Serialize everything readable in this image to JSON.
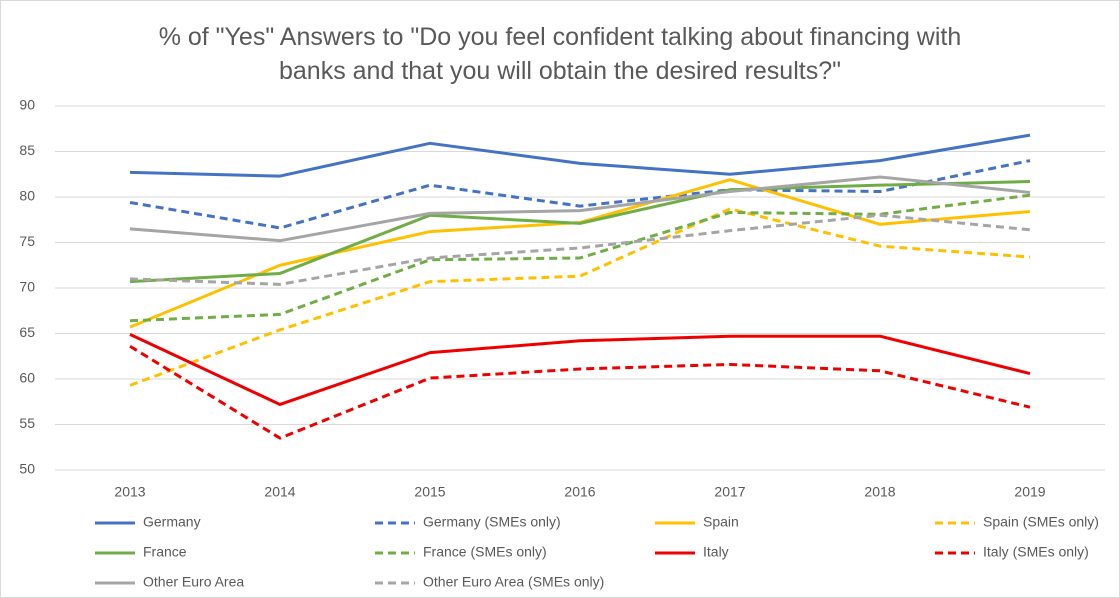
{
  "chart_data": {
    "type": "line",
    "title": "% of \"Yes\" Answers to \"Do you feel confident talking about financing with banks and that you will obtain the desired results?\"",
    "categories": [
      "2013",
      "2014",
      "2015",
      "2016",
      "2017",
      "2018",
      "2019"
    ],
    "series": [
      {
        "name": "Germany",
        "color": "#4472c4",
        "dashed": false,
        "values": [
          82.7,
          82.3,
          85.9,
          83.7,
          82.5,
          84.0,
          86.8
        ]
      },
      {
        "name": "Germany (SMEs only)",
        "color": "#4472c4",
        "dashed": true,
        "values": [
          79.4,
          76.6,
          81.3,
          79.0,
          80.8,
          80.6,
          84.0
        ]
      },
      {
        "name": "Spain",
        "color": "#ffc000",
        "dashed": false,
        "values": [
          65.7,
          72.5,
          76.2,
          77.2,
          81.9,
          77.0,
          78.4
        ]
      },
      {
        "name": "Spain (SMEs only)",
        "color": "#ffc000",
        "dashed": true,
        "values": [
          59.3,
          65.4,
          70.7,
          71.3,
          78.7,
          74.6,
          73.4
        ]
      },
      {
        "name": "France",
        "color": "#70ad47",
        "dashed": false,
        "values": [
          70.7,
          71.6,
          78.0,
          77.1,
          80.8,
          81.3,
          81.7
        ]
      },
      {
        "name": "France (SMEs only)",
        "color": "#70ad47",
        "dashed": true,
        "values": [
          66.4,
          67.1,
          73.1,
          73.3,
          78.3,
          78.1,
          80.2
        ]
      },
      {
        "name": "Italy",
        "color": "#ee0000",
        "dashed": false,
        "values": [
          64.9,
          57.2,
          62.9,
          64.2,
          64.7,
          64.7,
          60.6
        ]
      },
      {
        "name": "Italy (SMEs only)",
        "color": "#ee0000",
        "dashed": true,
        "values": [
          63.6,
          53.5,
          60.1,
          61.1,
          61.6,
          60.9,
          56.9
        ]
      },
      {
        "name": "Other Euro Area",
        "color": "#a5a5a5",
        "dashed": false,
        "values": [
          76.5,
          75.2,
          78.2,
          78.5,
          80.6,
          82.2,
          80.5
        ]
      },
      {
        "name": "Other Euro Area (SMEs only)",
        "color": "#a5a5a5",
        "dashed": true,
        "values": [
          71.0,
          70.4,
          73.3,
          74.4,
          76.3,
          78.0,
          76.4
        ]
      }
    ],
    "ylim": [
      50,
      90
    ],
    "yticks": [
      50,
      55,
      60,
      65,
      70,
      75,
      80,
      85,
      90
    ],
    "grid": true,
    "legend": "bottom"
  }
}
